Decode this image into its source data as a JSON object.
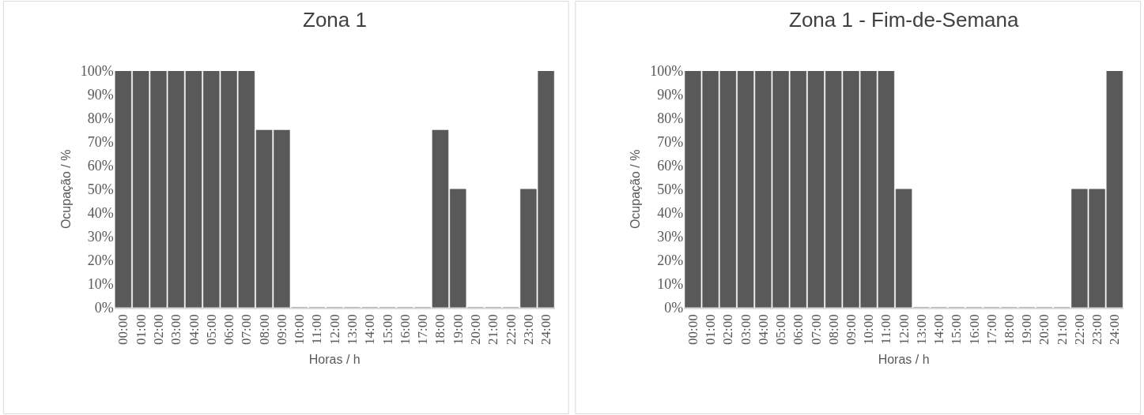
{
  "chart_data": [
    {
      "type": "bar",
      "title": "Zona 1",
      "xlabel": "Horas / h",
      "ylabel": "Ocupação / %",
      "categories": [
        "00:00",
        "01:00",
        "02:00",
        "03:00",
        "04:00",
        "05:00",
        "06:00",
        "07:00",
        "08:00",
        "09:00",
        "10:00",
        "11:00",
        "12:00",
        "13:00",
        "14:00",
        "15:00",
        "16:00",
        "17:00",
        "18:00",
        "19:00",
        "20:00",
        "21:00",
        "22:00",
        "23:00",
        "24:00"
      ],
      "values": [
        100,
        100,
        100,
        100,
        100,
        100,
        100,
        100,
        75,
        75,
        0,
        0,
        0,
        0,
        0,
        0,
        0,
        0,
        75,
        50,
        0,
        0,
        0,
        50,
        100
      ],
      "color": "#595959",
      "ylim": [
        0,
        100
      ],
      "yticks": [
        {
          "value": 0,
          "label": "0%"
        },
        {
          "value": 10,
          "label": "10%"
        },
        {
          "value": 20,
          "label": "20%"
        },
        {
          "value": 30,
          "label": "30%"
        },
        {
          "value": 40,
          "label": "40%"
        },
        {
          "value": 50,
          "label": "50%"
        },
        {
          "value": 60,
          "label": "60%"
        },
        {
          "value": 70,
          "label": "70%"
        },
        {
          "value": 80,
          "label": "80%"
        },
        {
          "value": 90,
          "label": "90%"
        },
        {
          "value": 100,
          "label": "100%"
        }
      ],
      "grid": false
    },
    {
      "type": "bar",
      "title": "Zona 1 - Fim-de-Semana",
      "xlabel": "Horas / h",
      "ylabel": "Ocupação / %",
      "categories": [
        "00:00",
        "01:00",
        "02:00",
        "03:00",
        "04:00",
        "05:00",
        "06:00",
        "07:00",
        "08:00",
        "09:00",
        "10:00",
        "11:00",
        "12:00",
        "13:00",
        "14:00",
        "15:00",
        "16:00",
        "17:00",
        "18:00",
        "19:00",
        "20:00",
        "21:00",
        "22:00",
        "23:00",
        "24:00"
      ],
      "values": [
        100,
        100,
        100,
        100,
        100,
        100,
        100,
        100,
        100,
        100,
        100,
        100,
        50,
        0,
        0,
        0,
        0,
        0,
        0,
        0,
        0,
        0,
        50,
        50,
        100
      ],
      "color": "#595959",
      "ylim": [
        0,
        100
      ],
      "yticks": [
        {
          "value": 0,
          "label": "0%"
        },
        {
          "value": 10,
          "label": "10%"
        },
        {
          "value": 20,
          "label": "20%"
        },
        {
          "value": 30,
          "label": "30%"
        },
        {
          "value": 40,
          "label": "40%"
        },
        {
          "value": 50,
          "label": "50%"
        },
        {
          "value": 60,
          "label": "60%"
        },
        {
          "value": 70,
          "label": "70%"
        },
        {
          "value": 80,
          "label": "80%"
        },
        {
          "value": 90,
          "label": "90%"
        },
        {
          "value": 100,
          "label": "100%"
        }
      ],
      "grid": false
    }
  ]
}
